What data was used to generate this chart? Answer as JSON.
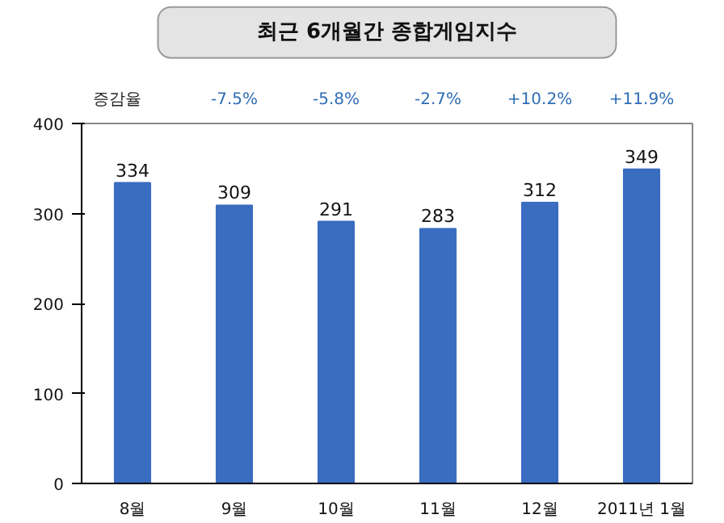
{
  "chart_data": {
    "type": "bar",
    "title": "최근 6개월간 종합게임지수",
    "categories": [
      "8월",
      "9월",
      "10월",
      "11월",
      "12월",
      "2011년 1월"
    ],
    "values": [
      334,
      309,
      291,
      283,
      312,
      349
    ],
    "color": "#3a6cc0",
    "ylim": [
      0,
      400
    ],
    "yticks": [
      0,
      100,
      200,
      300,
      400
    ],
    "grid": false,
    "data_labels": true,
    "annotations": [
      "증감율",
      "-7.5%",
      "-5.8%",
      "-2.7%",
      "+10.2%",
      "+11.9%"
    ]
  }
}
